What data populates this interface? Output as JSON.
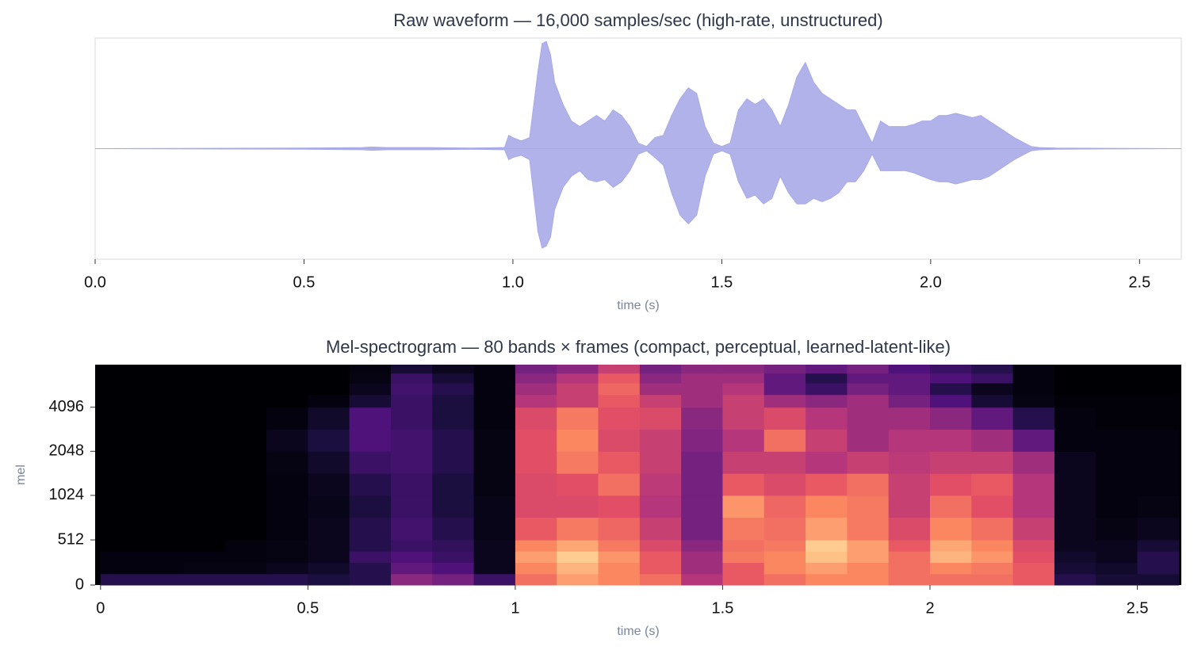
{
  "chart_data": [
    {
      "type": "area",
      "title": "Raw waveform — 16,000 samples/sec  (high-rate, unstructured)",
      "xlabel": "time (s)",
      "xlim": [
        0,
        2.6
      ],
      "ylim": [
        -1,
        1
      ],
      "xticks": [
        {
          "value": 0,
          "label": "0.0"
        },
        0.5,
        {
          "value": 1,
          "label": "1.0"
        },
        1.5,
        {
          "value": 2,
          "label": "2.0"
        },
        2.5
      ],
      "x": [
        0,
        0.5,
        0.64,
        0.66,
        0.7,
        0.8,
        0.9,
        0.98,
        0.99,
        1.0,
        1.02,
        1.04,
        1.06,
        1.07,
        1.08,
        1.09,
        1.1,
        1.12,
        1.14,
        1.16,
        1.18,
        1.2,
        1.22,
        1.24,
        1.26,
        1.28,
        1.3,
        1.32,
        1.34,
        1.36,
        1.38,
        1.4,
        1.42,
        1.44,
        1.46,
        1.48,
        1.5,
        1.52,
        1.54,
        1.56,
        1.58,
        1.6,
        1.62,
        1.64,
        1.66,
        1.68,
        1.7,
        1.72,
        1.74,
        1.76,
        1.78,
        1.8,
        1.82,
        1.84,
        1.86,
        1.88,
        1.9,
        1.92,
        1.94,
        1.96,
        1.98,
        2.0,
        2.02,
        2.04,
        2.06,
        2.08,
        2.1,
        2.12,
        2.14,
        2.16,
        2.18,
        2.2,
        2.22,
        2.24,
        2.26,
        2.3,
        2.6
      ],
      "series": [
        {
          "color": "#a8aae8",
          "values": [
            0,
            0.005,
            0.01,
            0.015,
            0.01,
            0.01,
            0.005,
            0.01,
            0.12,
            0.1,
            0.07,
            0.1,
            0.7,
            0.95,
            0.97,
            0.85,
            0.6,
            0.4,
            0.25,
            0.2,
            0.25,
            0.3,
            0.25,
            0.35,
            0.3,
            0.2,
            0.05,
            0.02,
            0.1,
            0.12,
            0.3,
            0.45,
            0.55,
            0.5,
            0.2,
            0.05,
            0.02,
            0.05,
            0.35,
            0.45,
            0.4,
            0.45,
            0.35,
            0.2,
            0.4,
            0.65,
            0.78,
            0.6,
            0.5,
            0.45,
            0.4,
            0.35,
            0.35,
            0.2,
            0.05,
            0.25,
            0.2,
            0.2,
            0.2,
            0.22,
            0.25,
            0.25,
            0.3,
            0.3,
            0.32,
            0.3,
            0.28,
            0.3,
            0.25,
            0.2,
            0.15,
            0.1,
            0.06,
            0.02,
            0.01,
            0.005,
            0
          ]
        },
        {
          "color": "#a8aae8",
          "values": [
            0,
            -0.005,
            -0.01,
            -0.015,
            -0.01,
            -0.01,
            -0.005,
            -0.01,
            -0.1,
            -0.08,
            -0.06,
            -0.1,
            -0.75,
            -0.9,
            -0.88,
            -0.8,
            -0.55,
            -0.35,
            -0.25,
            -0.2,
            -0.28,
            -0.3,
            -0.28,
            -0.35,
            -0.3,
            -0.2,
            -0.05,
            -0.02,
            -0.08,
            -0.15,
            -0.4,
            -0.6,
            -0.68,
            -0.6,
            -0.25,
            -0.05,
            -0.02,
            -0.05,
            -0.3,
            -0.45,
            -0.42,
            -0.5,
            -0.45,
            -0.25,
            -0.4,
            -0.5,
            -0.5,
            -0.45,
            -0.48,
            -0.45,
            -0.4,
            -0.3,
            -0.3,
            -0.2,
            -0.05,
            -0.2,
            -0.2,
            -0.2,
            -0.2,
            -0.22,
            -0.25,
            -0.28,
            -0.3,
            -0.3,
            -0.32,
            -0.3,
            -0.28,
            -0.28,
            -0.25,
            -0.2,
            -0.15,
            -0.1,
            -0.06,
            -0.02,
            -0.01,
            -0.005,
            0
          ]
        }
      ]
    },
    {
      "type": "heatmap",
      "title": "Mel-spectrogram — 80 bands × frames  (compact, perceptual, learned-latent-like)",
      "xlabel": "time (s)",
      "ylabel": "mel",
      "xlim": [
        -0.013,
        2.606
      ],
      "ylim": [
        0,
        8000
      ],
      "yscale": "symlog",
      "linthresh": 1000,
      "base": 2,
      "xticks": [
        0,
        0.5,
        1,
        1.5,
        2,
        2.5
      ],
      "yticks": [
        0,
        512,
        1024,
        2048,
        4096
      ],
      "colormap": "magma",
      "xbins": [
        0,
        0.1,
        0.2,
        0.3,
        0.4,
        0.5,
        0.6,
        0.7,
        0.8,
        0.9,
        1.0,
        1.1,
        1.2,
        1.3,
        1.4,
        1.5,
        1.6,
        1.7,
        1.8,
        1.9,
        2.0,
        2.1,
        2.2,
        2.3,
        2.4,
        2.5,
        2.6
      ],
      "ybins": [
        0,
        128,
        256,
        384,
        512,
        768,
        1024,
        1448,
        2048,
        2896,
        4096,
        5000,
        6000,
        7000,
        8000
      ],
      "z": [
        [
          0.15,
          0.15,
          0.15,
          0.15,
          0.15,
          0.12,
          0.15,
          0.4,
          0.35,
          0.2,
          0.7,
          0.8,
          0.75,
          0.7,
          0.5,
          0.65,
          0.7,
          0.75,
          0.75,
          0.7,
          0.7,
          0.7,
          0.65,
          0.15,
          0.1,
          0.1
        ],
        [
          0.02,
          0.02,
          0.03,
          0.03,
          0.05,
          0.08,
          0.15,
          0.3,
          0.25,
          0.05,
          0.75,
          0.85,
          0.75,
          0.65,
          0.45,
          0.65,
          0.75,
          0.8,
          0.75,
          0.7,
          0.75,
          0.72,
          0.65,
          0.1,
          0.08,
          0.15
        ],
        [
          0.02,
          0.02,
          0.02,
          0.02,
          0.03,
          0.05,
          0.2,
          0.25,
          0.2,
          0.05,
          0.8,
          0.9,
          0.78,
          0.65,
          0.45,
          0.72,
          0.75,
          0.88,
          0.8,
          0.7,
          0.85,
          0.78,
          0.62,
          0.08,
          0.05,
          0.15
        ],
        [
          0,
          0,
          0,
          0.02,
          0.03,
          0.05,
          0.15,
          0.2,
          0.18,
          0.05,
          0.75,
          0.82,
          0.72,
          0.6,
          0.4,
          0.7,
          0.72,
          0.9,
          0.8,
          0.65,
          0.82,
          0.75,
          0.6,
          0.05,
          0.05,
          0.1
        ],
        [
          0,
          0,
          0,
          0,
          0.02,
          0.05,
          0.15,
          0.22,
          0.15,
          0.04,
          0.65,
          0.72,
          0.68,
          0.55,
          0.35,
          0.72,
          0.7,
          0.8,
          0.72,
          0.6,
          0.75,
          0.7,
          0.55,
          0.05,
          0.03,
          0.05
        ],
        [
          0,
          0,
          0,
          0,
          0.02,
          0.04,
          0.12,
          0.2,
          0.12,
          0.04,
          0.6,
          0.6,
          0.62,
          0.5,
          0.35,
          0.78,
          0.68,
          0.75,
          0.72,
          0.55,
          0.7,
          0.62,
          0.5,
          0.05,
          0.02,
          0.03
        ],
        [
          0,
          0,
          0,
          0,
          0.02,
          0.05,
          0.15,
          0.2,
          0.12,
          0.03,
          0.6,
          0.62,
          0.7,
          0.52,
          0.35,
          0.65,
          0.6,
          0.65,
          0.7,
          0.55,
          0.62,
          0.65,
          0.5,
          0.05,
          0.02,
          0.02
        ],
        [
          0,
          0,
          0,
          0,
          0.03,
          0.08,
          0.2,
          0.22,
          0.15,
          0.03,
          0.62,
          0.72,
          0.65,
          0.55,
          0.35,
          0.55,
          0.55,
          0.5,
          0.55,
          0.52,
          0.55,
          0.55,
          0.45,
          0.05,
          0.02,
          0.02
        ],
        [
          0,
          0,
          0,
          0,
          0.05,
          0.12,
          0.25,
          0.22,
          0.15,
          0.03,
          0.62,
          0.75,
          0.6,
          0.55,
          0.38,
          0.5,
          0.7,
          0.55,
          0.45,
          0.5,
          0.5,
          0.45,
          0.3,
          0.02,
          0.02,
          0.02
        ],
        [
          0,
          0,
          0,
          0,
          0.02,
          0.08,
          0.25,
          0.2,
          0.12,
          0.02,
          0.6,
          0.72,
          0.62,
          0.6,
          0.4,
          0.55,
          0.6,
          0.5,
          0.45,
          0.45,
          0.4,
          0.3,
          0.15,
          0.02,
          0.01,
          0.01
        ],
        [
          0,
          0,
          0,
          0,
          0,
          0.02,
          0.1,
          0.2,
          0.12,
          0.02,
          0.5,
          0.55,
          0.65,
          0.55,
          0.45,
          0.55,
          0.45,
          0.4,
          0.45,
          0.35,
          0.25,
          0.1,
          0.03,
          0.01,
          0.01,
          0.01
        ],
        [
          0,
          0,
          0,
          0,
          0,
          0,
          0.05,
          0.22,
          0.15,
          0.02,
          0.45,
          0.55,
          0.68,
          0.45,
          0.45,
          0.5,
          0.3,
          0.2,
          0.35,
          0.3,
          0.15,
          0.05,
          0.02,
          0,
          0,
          0
        ],
        [
          0,
          0,
          0,
          0,
          0,
          0,
          0.03,
          0.2,
          0.1,
          0.02,
          0.4,
          0.5,
          0.65,
          0.4,
          0.45,
          0.45,
          0.3,
          0.15,
          0.3,
          0.3,
          0.25,
          0.2,
          0.02,
          0,
          0,
          0
        ],
        [
          0,
          0,
          0,
          0,
          0,
          0,
          0.02,
          0.1,
          0.05,
          0.02,
          0.35,
          0.4,
          0.55,
          0.35,
          0.4,
          0.4,
          0.35,
          0.3,
          0.35,
          0.25,
          0.2,
          0.15,
          0.02,
          0,
          0,
          0
        ]
      ]
    }
  ]
}
